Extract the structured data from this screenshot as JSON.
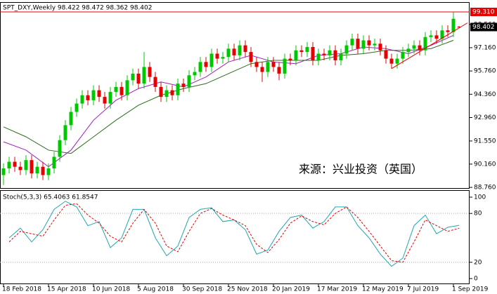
{
  "chart_data": [
    {
      "type": "candlestick",
      "title": "SPT_DXY,Weekly  98.422 98.472 98.362 98.402",
      "annotation": "来源：兴业投资（英国）",
      "categories": [
        "18 Feb 2018",
        null,
        null,
        null,
        null,
        null,
        null,
        null,
        "15 Apr 2018",
        null,
        null,
        null,
        null,
        null,
        null,
        null,
        "10 Jun 2018",
        null,
        null,
        null,
        null,
        null,
        null,
        null,
        "5 Aug 2018",
        null,
        null,
        null,
        null,
        null,
        null,
        null,
        "30 Sep 2018",
        null,
        null,
        null,
        null,
        null,
        null,
        null,
        "25 Nov 2018",
        null,
        null,
        null,
        null,
        null,
        null,
        null,
        "20 Jan 2019",
        null,
        null,
        null,
        null,
        null,
        null,
        null,
        "17 Mar 2019",
        null,
        null,
        null,
        null,
        null,
        null,
        null,
        "12 May 2019",
        null,
        null,
        null,
        null,
        null,
        null,
        null,
        "7 Jul 2019",
        null,
        null,
        null,
        null,
        null,
        null,
        null,
        "1 Sep 2019",
        null
      ],
      "open": [
        89.5,
        89.9,
        90.3,
        90.0,
        89.8,
        90.4,
        89.6,
        90.0,
        89.5,
        89.9,
        90.6,
        91.6,
        92.5,
        93.3,
        93.8,
        94.3,
        94.0,
        94.6,
        94.2,
        93.8,
        94.5,
        94.8,
        94.3,
        95.2,
        95.6,
        95.0,
        96.0,
        95.4,
        94.8,
        94.2,
        94.6,
        94.3,
        95.0,
        94.8,
        95.5,
        95.7,
        96.3,
        96.0,
        96.8,
        96.5,
        96.6,
        97.1,
        96.7,
        97.3,
        96.9,
        96.3,
        96.0,
        95.7,
        96.3,
        96.0,
        95.6,
        96.5,
        96.4,
        97.0,
        96.9,
        97.2,
        96.4,
        96.8,
        96.7,
        97.0,
        96.4,
        96.8,
        97.3,
        97.7,
        97.1,
        97.6,
        97.3,
        97.4,
        97.0,
        96.5,
        96.2,
        96.5,
        96.9,
        97.1,
        97.3,
        97.0,
        97.8,
        97.9,
        97.7,
        98.2,
        98.1,
        98.422
      ],
      "high": [
        90.2,
        90.6,
        90.6,
        90.3,
        90.7,
        90.7,
        90.3,
        90.3,
        90.2,
        90.9,
        91.9,
        92.8,
        93.6,
        94.1,
        94.6,
        94.6,
        94.9,
        94.9,
        94.5,
        94.8,
        95.1,
        95.1,
        95.5,
        95.9,
        95.9,
        96.9,
        96.3,
        95.7,
        95.1,
        94.9,
        94.9,
        95.3,
        95.3,
        95.8,
        96.0,
        96.6,
        96.6,
        97.1,
        97.1,
        96.9,
        97.4,
        97.4,
        97.6,
        97.6,
        97.2,
        96.6,
        96.3,
        96.6,
        96.6,
        96.3,
        96.8,
        96.8,
        97.3,
        97.3,
        97.5,
        97.5,
        97.1,
        97.1,
        97.3,
        97.3,
        97.1,
        97.6,
        98.0,
        98.0,
        97.9,
        97.9,
        97.7,
        97.7,
        97.3,
        96.8,
        96.8,
        97.2,
        97.4,
        97.6,
        97.6,
        98.1,
        98.2,
        98.2,
        98.5,
        98.5,
        99.31,
        98.472
      ],
      "low": [
        88.9,
        89.6,
        89.7,
        89.5,
        89.5,
        89.3,
        89.3,
        89.2,
        89.2,
        89.6,
        90.3,
        91.3,
        92.2,
        93.0,
        93.5,
        93.7,
        93.7,
        93.9,
        93.5,
        93.5,
        94.2,
        94.0,
        94.0,
        94.9,
        94.7,
        94.7,
        95.1,
        94.5,
        93.9,
        93.9,
        94.0,
        94.0,
        94.5,
        94.5,
        95.2,
        95.4,
        95.7,
        95.7,
        96.2,
        96.2,
        96.3,
        96.4,
        96.4,
        96.6,
        96.0,
        95.7,
        95.1,
        95.4,
        95.7,
        95.2,
        95.3,
        96.1,
        96.1,
        96.6,
        96.6,
        96.1,
        96.1,
        96.4,
        96.4,
        96.1,
        96.1,
        96.5,
        97.0,
        96.8,
        96.8,
        97.0,
        97.0,
        96.7,
        96.2,
        95.9,
        95.9,
        96.2,
        96.6,
        96.8,
        96.7,
        96.7,
        97.5,
        97.4,
        97.4,
        97.8,
        97.8,
        98.362
      ],
      "close": [
        89.9,
        90.3,
        90.0,
        89.8,
        90.4,
        89.6,
        90.0,
        89.5,
        89.9,
        90.6,
        91.6,
        92.5,
        93.3,
        93.8,
        94.3,
        94.0,
        94.6,
        94.2,
        93.8,
        94.5,
        94.8,
        94.3,
        95.2,
        95.6,
        95.0,
        96.0,
        95.4,
        94.8,
        94.2,
        94.6,
        94.3,
        95.0,
        94.8,
        95.5,
        95.7,
        96.3,
        96.0,
        96.8,
        96.5,
        96.6,
        97.1,
        96.7,
        97.3,
        96.9,
        96.3,
        96.0,
        95.7,
        96.3,
        96.0,
        95.6,
        96.5,
        96.4,
        97.0,
        96.9,
        97.2,
        96.4,
        96.8,
        96.7,
        97.0,
        96.4,
        96.8,
        97.3,
        97.7,
        97.1,
        97.6,
        97.3,
        97.4,
        97.0,
        96.5,
        96.2,
        96.5,
        96.9,
        97.1,
        97.3,
        97.0,
        97.8,
        97.9,
        97.7,
        98.2,
        98.1,
        98.9,
        98.402
      ],
      "up_color": "#00c800",
      "down_color": "#e60000",
      "lines": [
        {
          "color": "#a020c0",
          "x": [
            0,
            4,
            8,
            12,
            16,
            20,
            24,
            28,
            32,
            36,
            40,
            44,
            48,
            52,
            56,
            60,
            64,
            68,
            72,
            76,
            80
          ],
          "values": [
            91.5,
            91.0,
            90.0,
            91.0,
            92.8,
            94.0,
            94.7,
            95.1,
            94.8,
            95.4,
            96.3,
            96.7,
            96.3,
            96.2,
            96.7,
            96.8,
            97.2,
            97.1,
            96.8,
            97.3,
            97.9
          ]
        },
        {
          "color": "#2e6b1e",
          "x": [
            0,
            4,
            8,
            12,
            16,
            20,
            24,
            28,
            32,
            36,
            40,
            44,
            48,
            52,
            56,
            60,
            64,
            68,
            72,
            76,
            80
          ],
          "values": [
            92.4,
            91.8,
            91.0,
            90.8,
            91.8,
            92.8,
            93.7,
            94.3,
            94.7,
            95.0,
            95.6,
            96.2,
            96.4,
            96.4,
            96.4,
            96.7,
            96.8,
            97.0,
            97.0,
            97.1,
            97.6
          ]
        }
      ],
      "hline": {
        "value": 99.31,
        "label": "99.310",
        "color": "#e60000"
      },
      "trendline": {
        "x": [
          69,
          82.5
        ],
        "values": [
          95.9,
          98.65
        ],
        "color": "#e60000"
      },
      "last_price": 98.402,
      "ylim": [
        88.72,
        99.9
      ],
      "yticks": [
        {
          "value": 88.76,
          "label": "88.760"
        },
        {
          "value": 90.16,
          "label": "90.160"
        },
        {
          "value": 91.55,
          "label": "91.550"
        },
        {
          "value": 92.96,
          "label": "92.960"
        },
        {
          "value": 94.36,
          "label": "94.360"
        },
        {
          "value": 95.76,
          "label": "95.760"
        },
        {
          "value": 97.16,
          "label": "97.160"
        },
        {
          "value": 98.56,
          "label": "98.560"
        }
      ]
    },
    {
      "type": "line",
      "title": "Stoch(5,3,3) 65.4063 61.8547",
      "series": [
        {
          "color": "#20a8b0",
          "dash": false,
          "x": [
            1,
            3,
            5,
            7,
            9,
            11,
            13,
            15,
            17,
            19,
            21,
            23,
            25,
            27,
            29,
            31,
            33,
            35,
            37,
            39,
            41,
            43,
            45,
            47,
            49,
            51,
            53,
            55,
            57,
            59,
            61,
            63,
            65,
            67,
            69,
            71,
            73,
            75,
            77,
            79,
            81
          ],
          "values": [
            50,
            62,
            45,
            60,
            85,
            95,
            88,
            65,
            70,
            38,
            50,
            85,
            85,
            50,
            28,
            40,
            75,
            85,
            87,
            70,
            72,
            60,
            30,
            35,
            58,
            75,
            78,
            62,
            70,
            88,
            88,
            65,
            50,
            30,
            15,
            25,
            65,
            78,
            55,
            63,
            65.4063
          ]
        },
        {
          "color": "#e60000",
          "dash": true,
          "x": [
            1,
            3,
            5,
            7,
            9,
            11,
            13,
            15,
            17,
            19,
            21,
            23,
            25,
            27,
            29,
            31,
            33,
            35,
            37,
            39,
            41,
            43,
            45,
            47,
            49,
            51,
            53,
            55,
            57,
            59,
            61,
            63,
            65,
            67,
            69,
            71,
            73,
            75,
            77,
            79,
            81
          ],
          "values": [
            45,
            58,
            55,
            52,
            72,
            90,
            92,
            78,
            68,
            52,
            45,
            68,
            85,
            68,
            40,
            33,
            58,
            80,
            86,
            78,
            72,
            65,
            42,
            32,
            48,
            68,
            77,
            70,
            66,
            80,
            88,
            75,
            58,
            40,
            22,
            20,
            45,
            72,
            65,
            58,
            61.8547
          ]
        }
      ],
      "levels": [
        80,
        20
      ],
      "ylim": [
        -6.9,
        108.6
      ],
      "yticks": [
        0,
        20,
        80,
        100
      ]
    }
  ]
}
